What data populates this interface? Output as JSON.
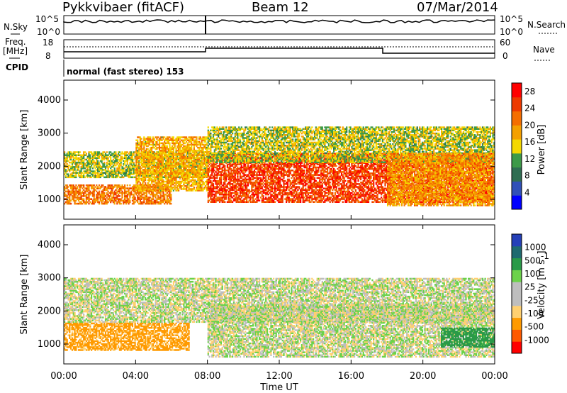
{
  "header": {
    "station": "Pykkvibaer (fitACF)",
    "beam": "Beam 12",
    "date": "07/Mar/2014"
  },
  "summary": {
    "nsky_label": "N.Sky",
    "nsearch_label": "N.Search",
    "nsky_ticks": [
      "10^5",
      "10^0"
    ],
    "nsearch_ticks": [
      "10^5",
      "10^0"
    ],
    "freq_label_1": "Freq.",
    "freq_label_2": "[MHz]",
    "freq_ticks": [
      "18",
      "8"
    ],
    "nave_label": "Nave",
    "nave_ticks": [
      "60",
      "0"
    ],
    "cpid_label": "CPID",
    "cpid_value": "normal (fast stereo) 153"
  },
  "colors": {
    "power_scale": [
      "#0000ff",
      "#3050b8",
      "#2f6e52",
      "#3d9a48",
      "#f5d800",
      "#f5a000",
      "#f56e00",
      "#ee3a00",
      "#ff0000"
    ],
    "velocity_scale": [
      "#ff0000",
      "#ff5a00",
      "#ff9a00",
      "#ffd070",
      "#bebebe",
      "#bebebe",
      "#6cd24a",
      "#2a9a48",
      "#1f6a70",
      "#2540b8"
    ]
  },
  "chart_data": [
    {
      "type": "heatmap",
      "name": "power",
      "ylabel": "Slant Range [km]",
      "yticks": [
        "1000",
        "2000",
        "3000",
        "4000"
      ],
      "ylim": [
        400,
        4600
      ],
      "xlim_hours": [
        0,
        24
      ],
      "colorbar_label": "Power [dB]",
      "colorbar_ticks": [
        "4",
        "8",
        "12",
        "16",
        "20",
        "24",
        "28"
      ],
      "bands": [
        {
          "h0": 0,
          "h1": 6,
          "r0": 850,
          "r1": 1450,
          "value": 22
        },
        {
          "h0": 0,
          "h1": 8,
          "r0": 1650,
          "r1": 2450,
          "value": 14
        },
        {
          "h0": 4,
          "h1": 8,
          "r0": 1250,
          "r1": 2900,
          "value": 18
        },
        {
          "h0": 8,
          "h1": 24,
          "r0": 900,
          "r1": 2400,
          "value": 26
        },
        {
          "h0": 8,
          "h1": 24,
          "r0": 2100,
          "r1": 3200,
          "value": 14
        },
        {
          "h0": 18,
          "h1": 24,
          "r0": 800,
          "r1": 2400,
          "value": 20
        }
      ]
    },
    {
      "type": "heatmap",
      "name": "velocity",
      "xlabel": "Time UT",
      "ylabel": "Slant Range [km]",
      "yticks": [
        "1000",
        "2000",
        "3000",
        "4000"
      ],
      "xticks": [
        "00:00",
        "04:00",
        "08:00",
        "12:00",
        "16:00",
        "20:00",
        "00:00"
      ],
      "ylim": [
        400,
        4600
      ],
      "xlim_hours": [
        0,
        24
      ],
      "colorbar_label": "Velocity [m s",
      "colorbar_ticks": [
        "1000",
        "500",
        "100",
        "25",
        "-25",
        "-100",
        "-500",
        "-1000"
      ],
      "bands": [
        {
          "h0": 0,
          "h1": 7,
          "r0": 800,
          "r1": 1650,
          "value": -150
        },
        {
          "h0": 0,
          "h1": 24,
          "r0": 1650,
          "r1": 3000,
          "value": 0
        },
        {
          "h0": 8,
          "h1": 24,
          "r0": 600,
          "r1": 2200,
          "value": 0
        },
        {
          "h0": 21,
          "h1": 24,
          "r0": 900,
          "r1": 1500,
          "value": 400
        }
      ]
    }
  ]
}
